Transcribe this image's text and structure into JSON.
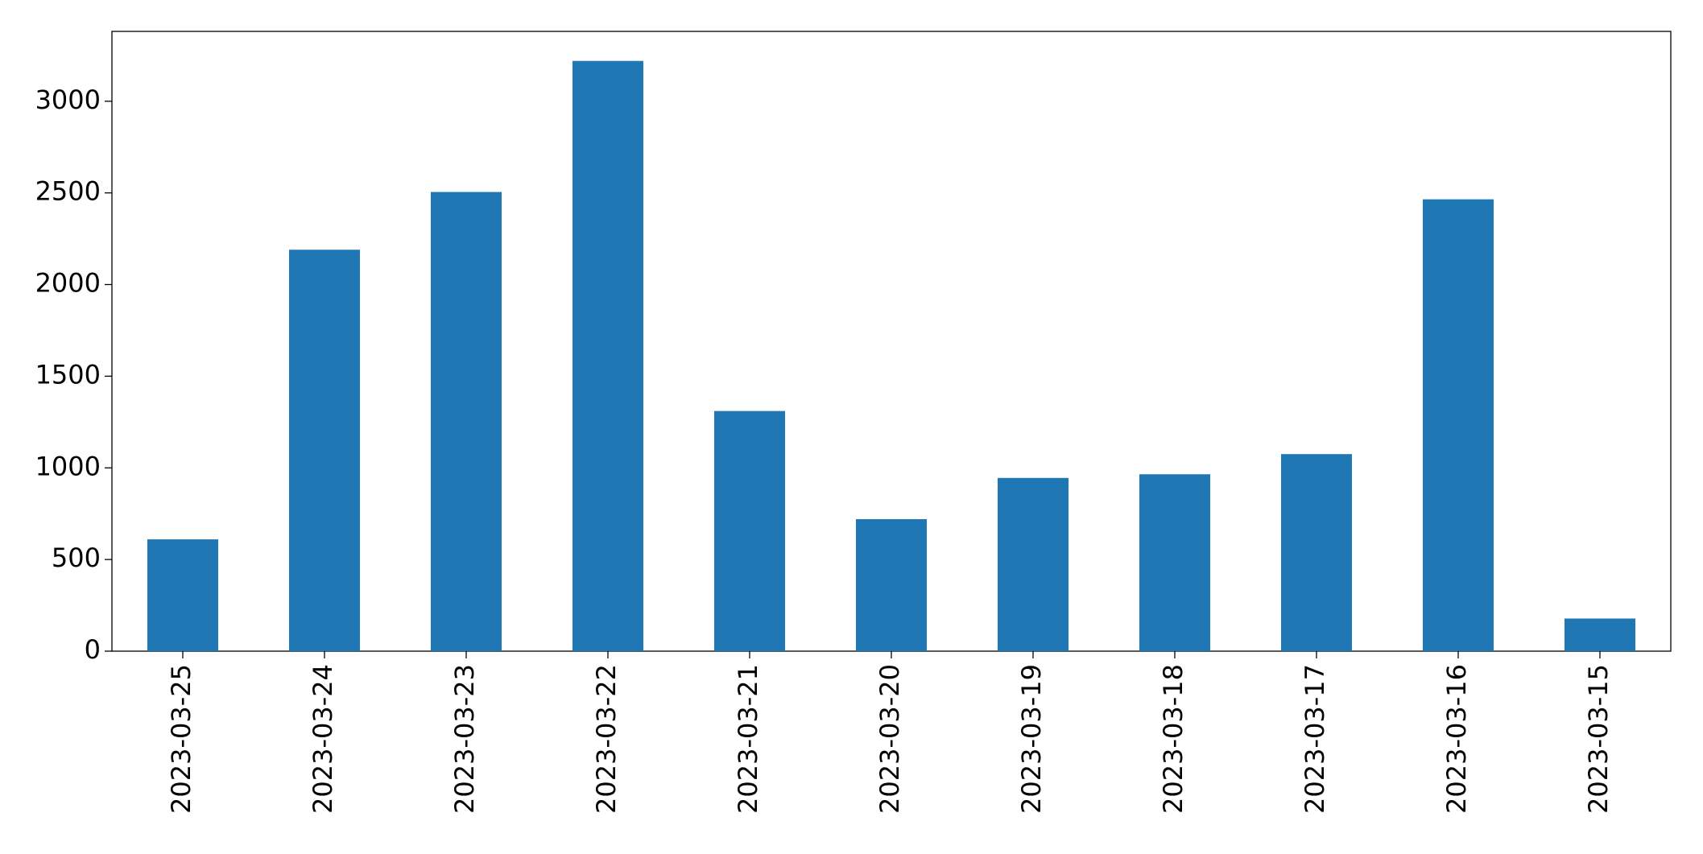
{
  "chart_data": {
    "type": "bar",
    "categories": [
      "2023-03-25",
      "2023-03-24",
      "2023-03-23",
      "2023-03-22",
      "2023-03-21",
      "2023-03-20",
      "2023-03-19",
      "2023-03-18",
      "2023-03-17",
      "2023-03-16",
      "2023-03-15"
    ],
    "values": [
      610,
      2190,
      2505,
      3220,
      1310,
      720,
      945,
      965,
      1075,
      2465,
      178
    ],
    "color": "#1f77b4",
    "ylim": [
      0,
      3381
    ],
    "yticks": [
      0,
      500,
      1000,
      1500,
      2000,
      2500,
      3000
    ],
    "grid": false
  }
}
